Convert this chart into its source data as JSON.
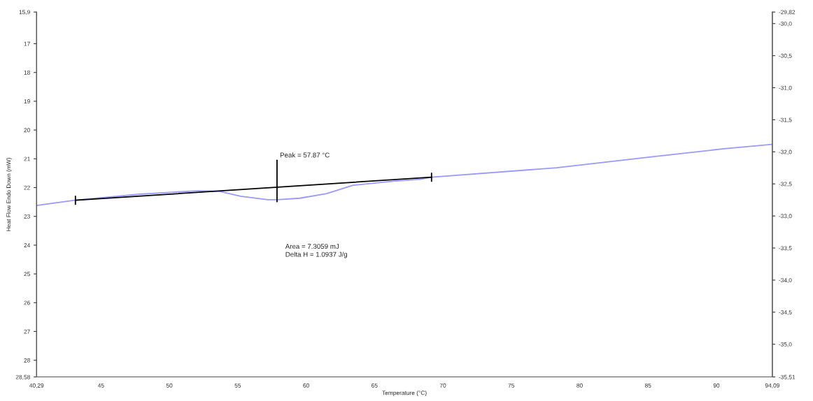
{
  "chart_data": {
    "type": "line",
    "xlabel": "Temperature (°C)",
    "ylabel": "Heat Flow Endo Down (mW)",
    "xlim": [
      40.29,
      94.09
    ],
    "xticks": [
      {
        "value": 40.29,
        "label": "40,29"
      },
      45,
      50,
      55,
      60,
      65,
      70,
      75,
      80,
      85,
      90,
      {
        "value": 94.09,
        "label": "94,09"
      }
    ],
    "ylim": [
      28.58,
      15.9
    ],
    "yticks": [
      {
        "value": 15.9,
        "label": "15,9"
      },
      17,
      18,
      19,
      20,
      21,
      22,
      23,
      24,
      25,
      26,
      27,
      28,
      {
        "value": 28.58,
        "label": "28,58"
      }
    ],
    "y2lim": [
      -35.51,
      -29.82
    ],
    "y2ticks": [
      {
        "value": -29.82,
        "label": "-29,82"
      },
      {
        "value": -30.0,
        "label": "-30,0"
      },
      {
        "value": -30.5,
        "label": "-30,5"
      },
      {
        "value": -31.0,
        "label": "-31,0"
      },
      {
        "value": -31.5,
        "label": "-31,5"
      },
      {
        "value": -32.0,
        "label": "-32,0"
      },
      {
        "value": -32.5,
        "label": "-32,5"
      },
      {
        "value": -33.0,
        "label": "-33,0"
      },
      {
        "value": -33.5,
        "label": "-33,5"
      },
      {
        "value": -34.0,
        "label": "-34,0"
      },
      {
        "value": -34.5,
        "label": "-34,5"
      },
      {
        "value": -35.0,
        "label": "-35,0"
      },
      {
        "value": -35.51,
        "label": "-35,51"
      }
    ],
    "grid": false,
    "legend": false,
    "marker": "none",
    "line_style": "solid",
    "series": [
      {
        "color": "#9999ff",
        "x": [
          40.29,
          43.08,
          47.8,
          52.1,
          53.65,
          55.2,
          57.2,
          57.87,
          59.53,
          61.5,
          63.44,
          66.38,
          68.34,
          69.17,
          78.32,
          85.32,
          90.56,
          94.09
        ],
        "values": [
          22.62,
          22.44,
          22.23,
          22.11,
          22.13,
          22.3,
          22.42,
          22.42,
          22.37,
          22.21,
          21.92,
          21.78,
          21.71,
          21.64,
          21.31,
          20.93,
          20.65,
          20.5
        ]
      },
      {
        "color": "#000000",
        "x": [
          43.13,
          69.17
        ],
        "values": [
          22.44,
          21.64
        ]
      },
      {
        "color": "#000000",
        "x": [
          57.87,
          57.87
        ],
        "values": [
          21.05,
          22.49
        ]
      },
      {
        "color": "#000000",
        "x": [
          43.13,
          43.13
        ],
        "values": [
          22.3,
          22.58
        ]
      },
      {
        "color": "#000000",
        "x": [
          69.17,
          69.17
        ],
        "values": [
          21.5,
          21.78
        ]
      }
    ],
    "annotations": [
      {
        "text": "Peak = 57.87 °C",
        "x": 57.87,
        "y": 21.0
      },
      "Area = 7.3059 mJ",
      "Delta H = 1.0937 J/g"
    ]
  }
}
